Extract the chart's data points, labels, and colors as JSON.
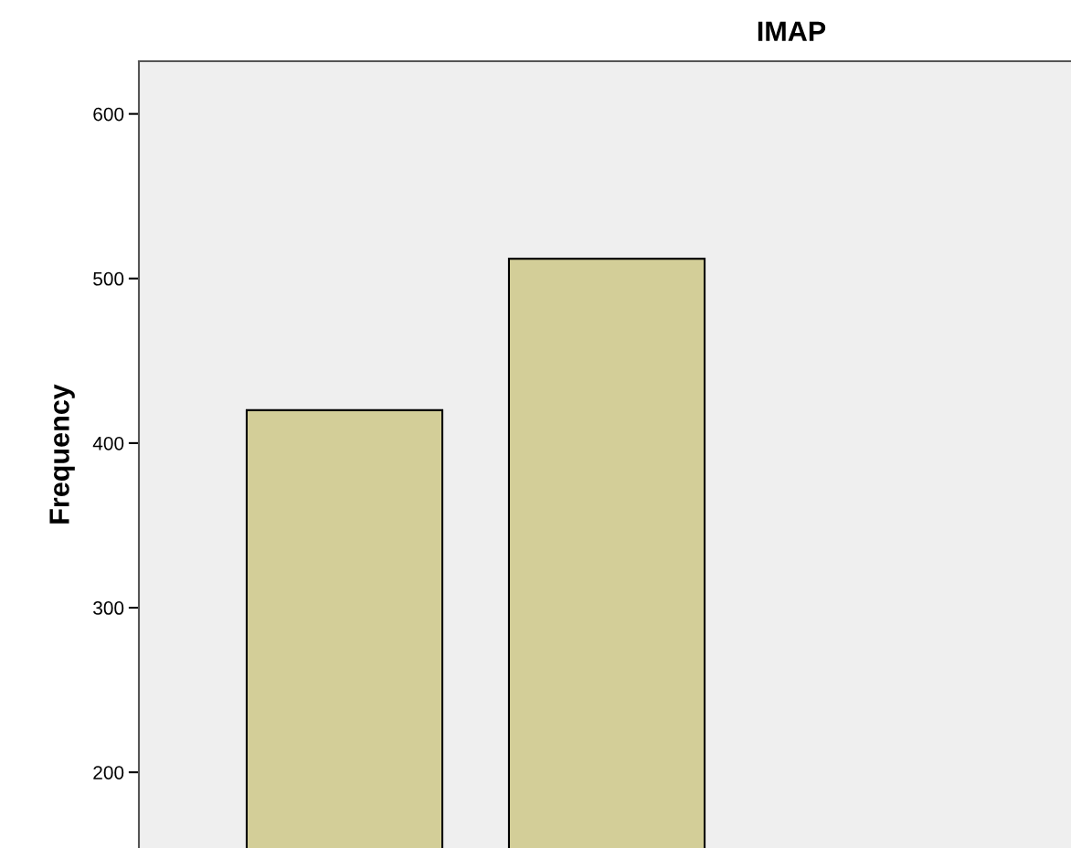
{
  "chart_data": {
    "type": "bar",
    "title": "IMAP",
    "ylabel": "Frequency",
    "categories": [
      null,
      null
    ],
    "values": [
      420,
      512
    ],
    "color": "#d3ce98",
    "ylim": [
      154,
      632
    ],
    "yticks": [
      200,
      300,
      400,
      500,
      600
    ],
    "grid": false,
    "tick_labels": "y"
  }
}
